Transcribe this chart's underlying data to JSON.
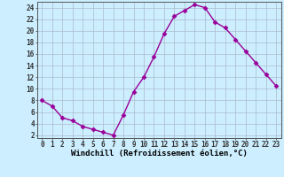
{
  "x": [
    0,
    1,
    2,
    3,
    4,
    5,
    6,
    7,
    8,
    9,
    10,
    11,
    12,
    13,
    14,
    15,
    16,
    17,
    18,
    19,
    20,
    21,
    22,
    23
  ],
  "y": [
    8,
    7,
    5,
    4.5,
    3.5,
    3,
    2.5,
    2,
    5.5,
    9.5,
    12,
    15.5,
    19.5,
    22.5,
    23.5,
    24.5,
    24,
    21.5,
    20.5,
    18.5,
    16.5,
    14.5,
    12.5,
    10.5
  ],
  "line_color": "#990099",
  "marker": "D",
  "markersize": 2.5,
  "linewidth": 1.0,
  "background_color": "#cceeff",
  "grid_color": "#aabbcc",
  "xlabel": "Windchill (Refroidissement éolien,°C)",
  "xlim": [
    -0.5,
    23.5
  ],
  "ylim": [
    1.5,
    25
  ],
  "yticks": [
    2,
    4,
    6,
    8,
    10,
    12,
    14,
    16,
    18,
    20,
    22,
    24
  ],
  "xticks": [
    0,
    1,
    2,
    3,
    4,
    5,
    6,
    7,
    8,
    9,
    10,
    11,
    12,
    13,
    14,
    15,
    16,
    17,
    18,
    19,
    20,
    21,
    22,
    23
  ],
  "xtick_labels": [
    "0",
    "1",
    "2",
    "3",
    "4",
    "5",
    "6",
    "7",
    "8",
    "9",
    "10",
    "11",
    "12",
    "13",
    "14",
    "15",
    "16",
    "17",
    "18",
    "19",
    "20",
    "21",
    "22",
    "23"
  ],
  "xlabel_fontsize": 6.5,
  "tick_fontsize": 5.5
}
